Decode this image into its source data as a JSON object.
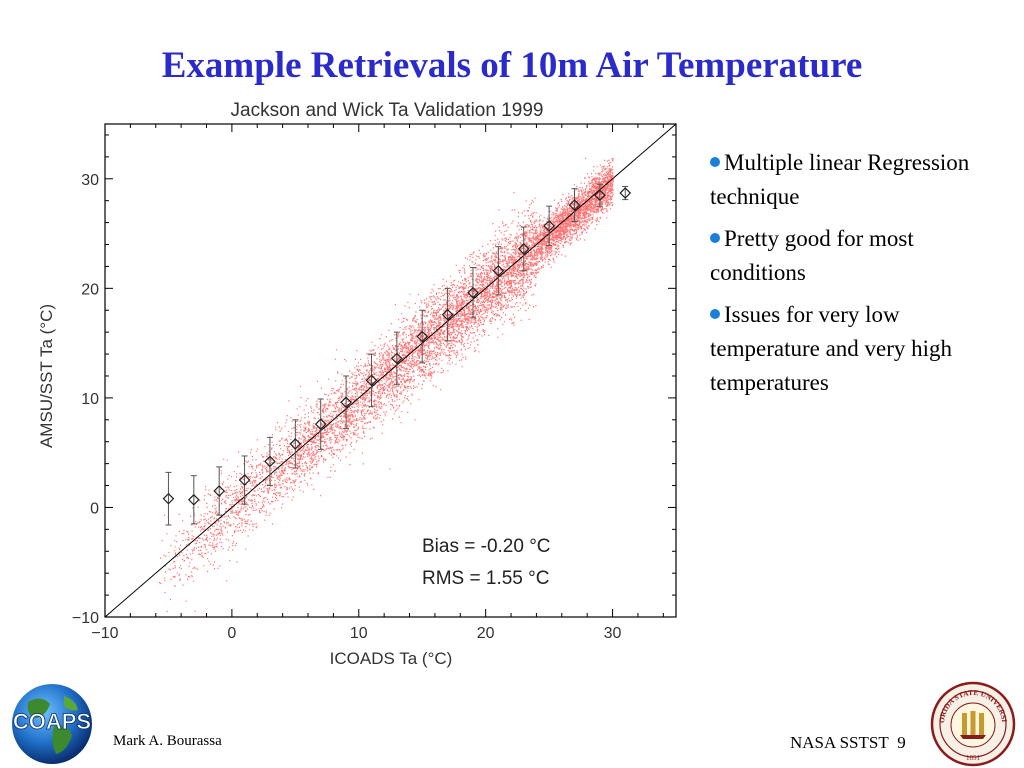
{
  "slide": {
    "title": "Example Retrievals of 10m Air Temperature",
    "bullets": [
      "Multiple linear Regression technique",
      "Pretty good for most conditions",
      "Issues for very low temperature and very high temperatures"
    ],
    "footer": {
      "author": "Mark A. Bourassa",
      "event": "NASA SSTST",
      "page_number": "9",
      "logo_text": "COAPS",
      "seal_text_top": "FLORIDA STATE UNIVERSITY",
      "seal_year": "1851"
    },
    "colors": {
      "title": "#2b2bcc",
      "bullet": "#1a7fd9",
      "scatter": "#ff0000",
      "line": "#000000"
    }
  },
  "chart_data": {
    "type": "scatter",
    "title": "Jackson and Wick Ta Validation 1999",
    "xlabel": "ICOADS Ta (°C)",
    "ylabel": "AMSU/SST Ta (°C)",
    "xlim": [
      -10,
      35
    ],
    "ylim": [
      -10,
      35
    ],
    "x_ticks": [
      -10,
      0,
      10,
      20,
      30
    ],
    "y_ticks": [
      -10,
      0,
      10,
      20,
      30
    ],
    "grid": false,
    "one_to_one_line": true,
    "annotations": [
      "Bias = -0.20 °C",
      "RMS =  1.55 °C"
    ],
    "series": [
      {
        "name": "",
        "style": "diamond markers with error bars",
        "x": [
          -5,
          -3,
          -1,
          1,
          3,
          5,
          7,
          9,
          11,
          13,
          15,
          17,
          19,
          21,
          23,
          25,
          27,
          29,
          31
        ],
        "y": [
          0.8,
          0.7,
          1.5,
          2.5,
          4.2,
          5.8,
          7.6,
          9.6,
          11.6,
          13.6,
          15.6,
          17.6,
          19.6,
          21.6,
          23.6,
          25.7,
          27.6,
          28.5,
          28.7
        ],
        "err": [
          2.4,
          2.2,
          2.2,
          2.2,
          2.2,
          2.2,
          2.3,
          2.4,
          2.4,
          2.4,
          2.4,
          2.4,
          2.3,
          2.2,
          2.0,
          1.8,
          1.5,
          1.0,
          0.6
        ]
      }
    ]
  }
}
